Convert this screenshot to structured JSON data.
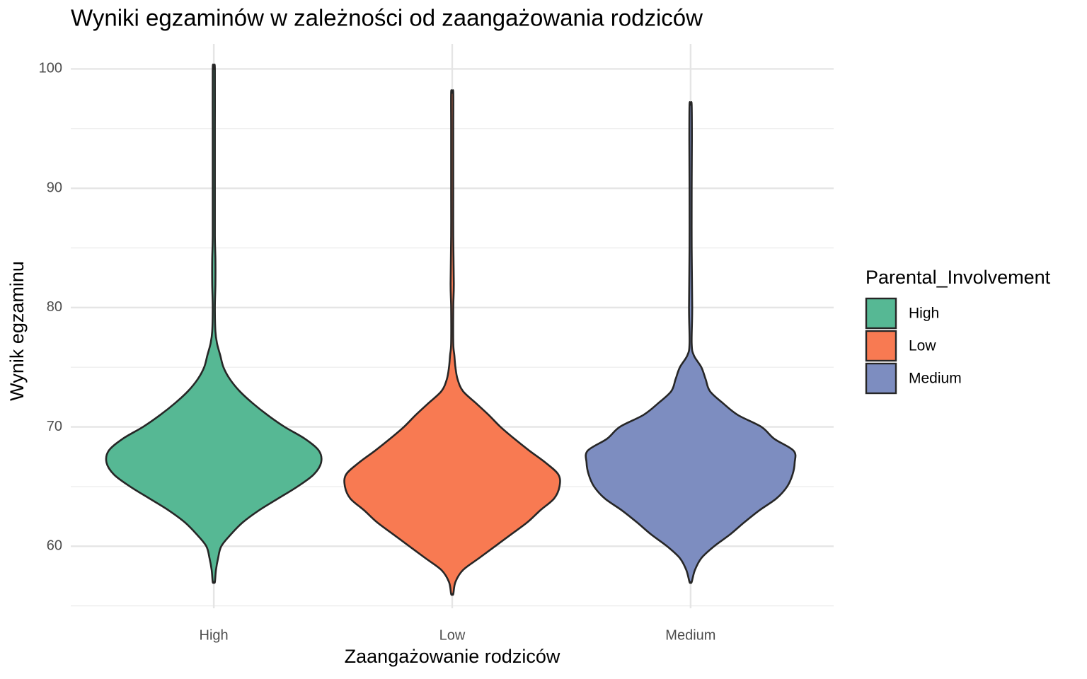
{
  "chart_data": {
    "type": "violin",
    "title": "Wyniki egzaminów w zależności od zaangażowania rodziców",
    "x_label": "Zaangażowanie rodziców",
    "y_label": "Wynik egzaminu",
    "categories": [
      "High",
      "Low",
      "Medium"
    ],
    "legend_title": "Parental_Involvement",
    "legend_position": "right",
    "grid": true,
    "ylim": [
      54.8,
      102.1
    ],
    "yticks": [
      60,
      70,
      80,
      90,
      100
    ],
    "minor_yticks": [
      55,
      65,
      75,
      85,
      95
    ],
    "series": [
      {
        "name": "High",
        "color": "#56b894",
        "y": [
          57,
          58,
          59,
          60,
          61,
          62,
          63,
          64,
          65,
          66,
          67,
          68,
          69,
          70,
          71,
          72,
          73,
          74,
          75,
          76,
          77,
          78,
          80,
          82,
          84,
          86,
          90,
          95,
          100
        ],
        "density": [
          0.01,
          0.02,
          0.04,
          0.07,
          0.16,
          0.27,
          0.42,
          0.6,
          0.78,
          0.93,
          1.0,
          0.98,
          0.85,
          0.66,
          0.5,
          0.36,
          0.24,
          0.15,
          0.09,
          0.06,
          0.03,
          0.015,
          0.01,
          0.015,
          0.015,
          0.01,
          0.01,
          0.01,
          0.01
        ]
      },
      {
        "name": "Low",
        "color": "#f87a52",
        "y": [
          56,
          57,
          58,
          59,
          60,
          61,
          62,
          63,
          64,
          65,
          66,
          67,
          68,
          69,
          70,
          71,
          72,
          73,
          74,
          75,
          76,
          77,
          80,
          82,
          86,
          90,
          95,
          98
        ],
        "density": [
          0.01,
          0.03,
          0.1,
          0.25,
          0.4,
          0.55,
          0.7,
          0.82,
          0.95,
          1.0,
          0.99,
          0.87,
          0.72,
          0.58,
          0.45,
          0.34,
          0.22,
          0.1,
          0.05,
          0.03,
          0.02,
          0.01,
          0.01,
          0.015,
          0.01,
          0.01,
          0.01,
          0.01
        ]
      },
      {
        "name": "Medium",
        "color": "#7d8dc0",
        "y": [
          57,
          58,
          59,
          60,
          61,
          62,
          63,
          64,
          65,
          66,
          67,
          68,
          69,
          70,
          71,
          72,
          73,
          74,
          75,
          76,
          77,
          80,
          85,
          90,
          94,
          97
        ],
        "density": [
          0.01,
          0.04,
          0.1,
          0.22,
          0.37,
          0.5,
          0.64,
          0.8,
          0.9,
          0.95,
          0.97,
          0.96,
          0.78,
          0.66,
          0.44,
          0.3,
          0.18,
          0.14,
          0.1,
          0.03,
          0.01,
          0.015,
          0.01,
          0.01,
          0.012,
          0.01
        ]
      }
    ]
  }
}
